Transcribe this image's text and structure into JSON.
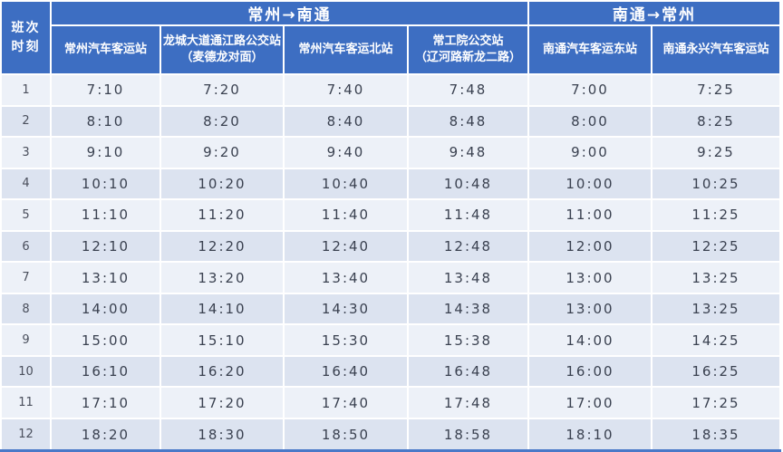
{
  "header": {
    "corner": {
      "line1": "班次",
      "line2": "时刻"
    },
    "groups": [
      {
        "label": "常州→南通"
      },
      {
        "label": "南通→常州"
      }
    ],
    "stations": [
      {
        "line1": "常州汽车客运站",
        "line2": ""
      },
      {
        "line1": "龙城大道通江路公交站",
        "line2": "（麦德龙对面）"
      },
      {
        "line1": "常州汽车客运北站",
        "line2": ""
      },
      {
        "line1": "常工院公交站",
        "line2": "（辽河路新龙二路）"
      },
      {
        "line1": "南通汽车客运东站",
        "line2": ""
      },
      {
        "line1": "南通永兴汽车客运站",
        "line2": ""
      }
    ]
  },
  "rows": [
    {
      "no": "1",
      "times": [
        "7:10",
        "7:20",
        "7:40",
        "7:48",
        "7:00",
        "7:25"
      ]
    },
    {
      "no": "2",
      "times": [
        "8:10",
        "8:20",
        "8:40",
        "8:48",
        "8:00",
        "8:25"
      ]
    },
    {
      "no": "3",
      "times": [
        "9:10",
        "9:20",
        "9:40",
        "9:48",
        "9:00",
        "9:25"
      ]
    },
    {
      "no": "4",
      "times": [
        "10:10",
        "10:20",
        "10:40",
        "10:48",
        "10:00",
        "10:25"
      ]
    },
    {
      "no": "5",
      "times": [
        "11:10",
        "11:20",
        "11:40",
        "11:48",
        "11:00",
        "11:25"
      ]
    },
    {
      "no": "6",
      "times": [
        "12:10",
        "12:20",
        "12:40",
        "12:48",
        "12:00",
        "12:25"
      ]
    },
    {
      "no": "7",
      "times": [
        "13:10",
        "13:20",
        "13:40",
        "13:48",
        "13:00",
        "13:25"
      ]
    },
    {
      "no": "8",
      "times": [
        "14:00",
        "14:10",
        "14:30",
        "14:38",
        "13:00",
        "13:25"
      ]
    },
    {
      "no": "9",
      "times": [
        "15:00",
        "15:10",
        "15:30",
        "15:38",
        "14:00",
        "14:25"
      ]
    },
    {
      "no": "10",
      "times": [
        "16:10",
        "16:20",
        "16:40",
        "16:48",
        "16:00",
        "16:25"
      ]
    },
    {
      "no": "11",
      "times": [
        "17:10",
        "17:20",
        "17:40",
        "17:48",
        "17:00",
        "17:25"
      ]
    },
    {
      "no": "12",
      "times": [
        "18:20",
        "18:30",
        "18:50",
        "18:58",
        "18:10",
        "18:35"
      ]
    }
  ],
  "colors": {
    "header_bg": "#3d6ec2",
    "row_odd": "#edf1f8",
    "row_even": "#dce3f0",
    "time_text": "#3a4150",
    "bottom_border": "#4a79c8"
  }
}
